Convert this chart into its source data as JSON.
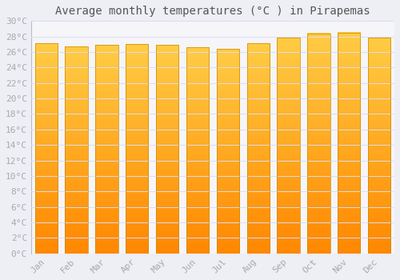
{
  "title": "Average monthly temperatures (°C ) in Pirapemas",
  "months": [
    "Jan",
    "Feb",
    "Mar",
    "Apr",
    "May",
    "Jun",
    "Jul",
    "Aug",
    "Sep",
    "Oct",
    "Nov",
    "Dec"
  ],
  "values": [
    27.1,
    26.7,
    26.9,
    27.0,
    26.9,
    26.6,
    26.4,
    27.1,
    27.9,
    28.4,
    28.5,
    27.9
  ],
  "ylim": [
    0,
    30
  ],
  "yticks": [
    0,
    2,
    4,
    6,
    8,
    10,
    12,
    14,
    16,
    18,
    20,
    22,
    24,
    26,
    28,
    30
  ],
  "bar_color_top": "#FFCC44",
  "bar_color_bottom": "#FF8800",
  "bar_edge_color": "#CC8800",
  "background_color": "#EEEEF5",
  "plot_bg_color": "#F5F5FA",
  "grid_color": "#DDDDEE",
  "title_fontsize": 10,
  "tick_fontsize": 8,
  "tick_color": "#AAAAAA",
  "title_color": "#555555",
  "bar_width": 0.75
}
